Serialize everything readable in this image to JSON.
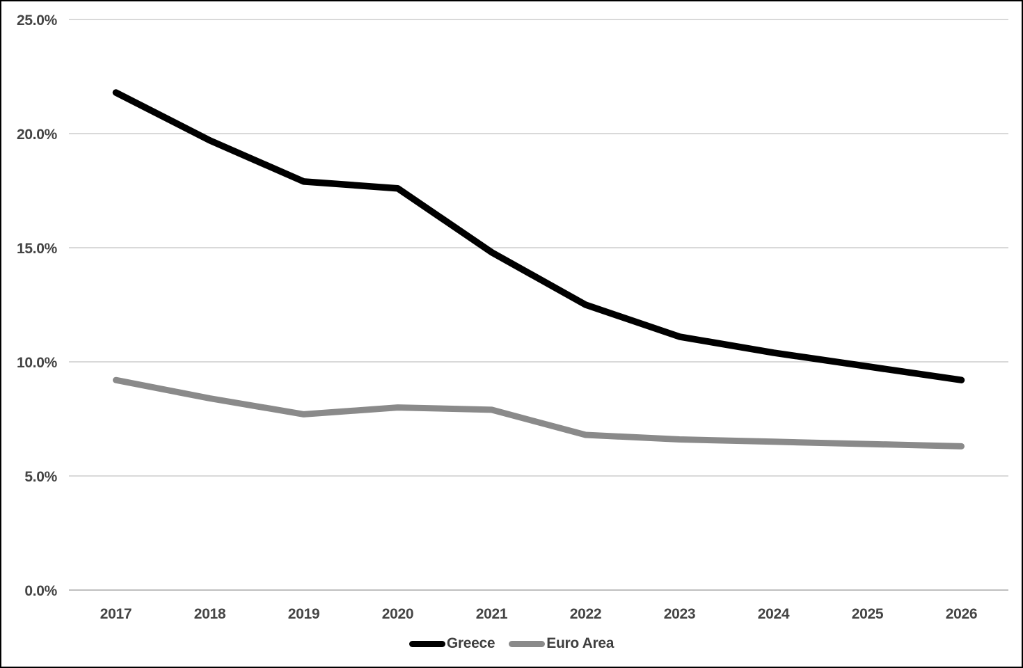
{
  "chart_data": {
    "type": "line",
    "title": "",
    "xlabel": "",
    "ylabel": "",
    "categories": [
      "2017",
      "2018",
      "2019",
      "2020",
      "2021",
      "2022",
      "2023",
      "2024",
      "2025",
      "2026"
    ],
    "series": [
      {
        "name": "Greece",
        "color": "#000000",
        "values": [
          21.8,
          19.7,
          17.9,
          17.6,
          14.8,
          12.5,
          11.1,
          10.4,
          9.8,
          9.2
        ]
      },
      {
        "name": "Euro Area",
        "color": "#8a8a8a",
        "values": [
          9.2,
          8.4,
          7.7,
          8.0,
          7.9,
          6.8,
          6.6,
          6.5,
          6.4,
          6.3
        ]
      }
    ],
    "ylim": [
      0,
      25
    ],
    "y_ticks": [
      0,
      5,
      10,
      15,
      20,
      25
    ],
    "y_tick_labels": [
      "0.0%",
      "5.0%",
      "10.0%",
      "15.0%",
      "20.0%",
      "25.0%"
    ],
    "value_unit": "percent",
    "grid": "horizontal",
    "legend_position": "bottom-center"
  },
  "colors": {
    "background": "#ffffff",
    "frame_border": "#000000",
    "gridline": "#d9d9d9",
    "axis_line": "#bfbfbf",
    "tick_label": "#444444",
    "legend_label": "#3f3f3f"
  }
}
